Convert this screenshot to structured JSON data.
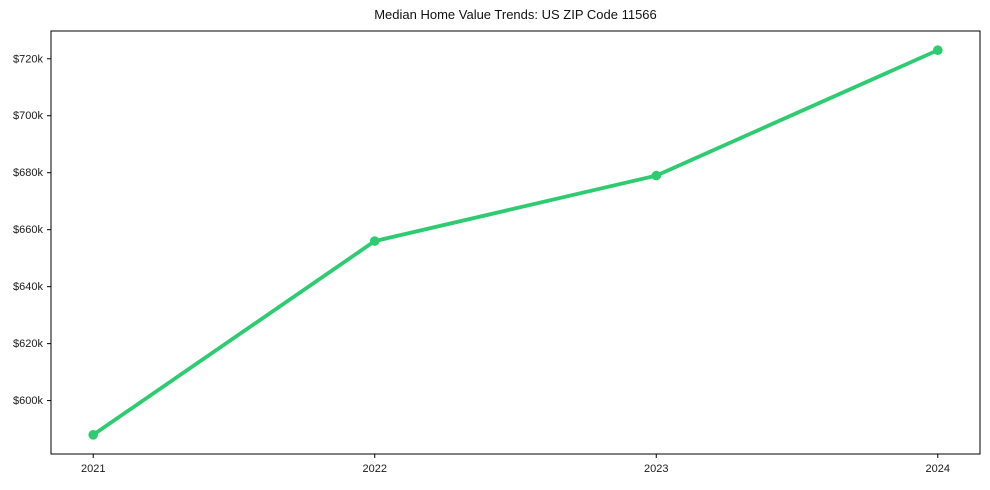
{
  "chart_data": {
    "type": "line",
    "title": "Median Home Value Trends: US ZIP Code 11566",
    "x": [
      2021,
      2022,
      2023,
      2024
    ],
    "x_tick_labels": [
      "2021",
      "2022",
      "2023",
      "2024"
    ],
    "series": [
      {
        "name": "Median Home Value",
        "color": "#2ecc71",
        "marker": "circle",
        "values": [
          588000,
          656000,
          679000,
          723000
        ]
      }
    ],
    "y_ticks": [
      {
        "value": 600000,
        "label": "$600k"
      },
      {
        "value": 620000,
        "label": "$620k"
      },
      {
        "value": 640000,
        "label": "$640k"
      },
      {
        "value": 660000,
        "label": "$660k"
      },
      {
        "value": 680000,
        "label": "$680k"
      },
      {
        "value": 700000,
        "label": "$700k"
      },
      {
        "value": 720000,
        "label": "$720k"
      }
    ],
    "xlim": [
      2020.85,
      2024.15
    ],
    "ylim": [
      581250,
      729750
    ],
    "grid": false,
    "legend": "none",
    "plot_background": "#ffffff",
    "spine_color": "#000000",
    "tick_label_color": "#1a1a1a",
    "title_color": "#111111"
  }
}
